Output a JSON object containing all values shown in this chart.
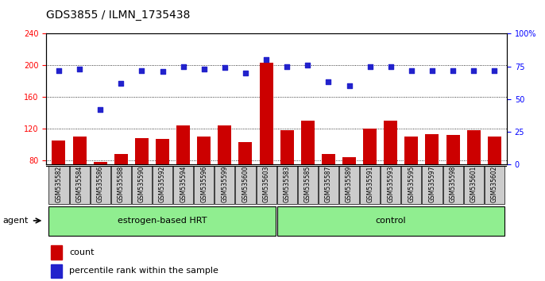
{
  "title": "GDS3855 / ILMN_1735438",
  "samples": [
    "GSM535582",
    "GSM535584",
    "GSM535586",
    "GSM535588",
    "GSM535590",
    "GSM535592",
    "GSM535594",
    "GSM535596",
    "GSM535599",
    "GSM535600",
    "GSM535603",
    "GSM535583",
    "GSM535585",
    "GSM535587",
    "GSM535589",
    "GSM535591",
    "GSM535593",
    "GSM535595",
    "GSM535597",
    "GSM535598",
    "GSM535601",
    "GSM535602"
  ],
  "counts": [
    105,
    110,
    78,
    88,
    108,
    107,
    124,
    110,
    124,
    103,
    203,
    118,
    130,
    88,
    84,
    120,
    130,
    110,
    113,
    112,
    118,
    110
  ],
  "percentiles": [
    72,
    73,
    42,
    62,
    72,
    71,
    75,
    73,
    74,
    70,
    80,
    75,
    76,
    63,
    60,
    75,
    75,
    72,
    72,
    72,
    72,
    72
  ],
  "group1_label": "estrogen-based HRT",
  "group2_label": "control",
  "group1_count": 11,
  "group2_count": 11,
  "ylim_left": [
    75,
    240
  ],
  "ylim_right": [
    0,
    100
  ],
  "yticks_left": [
    80,
    120,
    160,
    200,
    240
  ],
  "yticks_right": [
    0,
    25,
    50,
    75,
    100
  ],
  "bar_color": "#cc0000",
  "dot_color": "#2222cc",
  "bar_bottom": 75,
  "legend_items": [
    "count",
    "percentile rank within the sample"
  ],
  "agent_label": "agent",
  "group_color": "#90ee90",
  "xtick_bg": "#cccccc",
  "title_fontsize": 10,
  "axis_fontsize": 8,
  "tick_fontsize": 7
}
